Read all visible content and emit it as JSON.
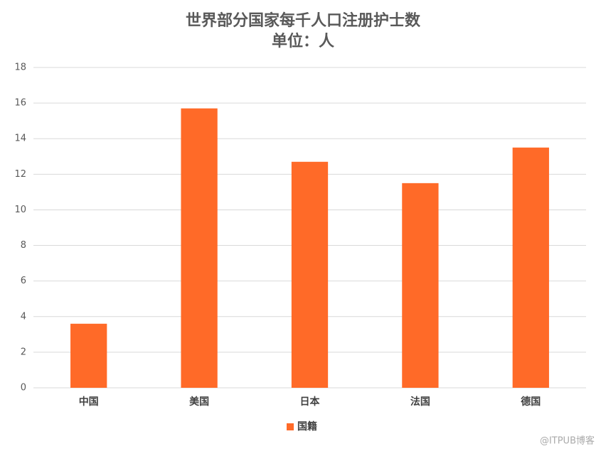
{
  "chart_data": {
    "type": "bar",
    "title": "世界部分国家每千人口注册护士数",
    "subtitle": "单位：人",
    "categories": [
      "中国",
      "美国",
      "日本",
      "法国",
      "德国"
    ],
    "series": [
      {
        "name": "国籍",
        "color": "#ff6a28",
        "values": [
          3.6,
          15.7,
          12.7,
          11.5,
          13.5
        ]
      }
    ],
    "ylim": [
      0,
      18
    ],
    "yticks": [
      0,
      2,
      4,
      6,
      8,
      10,
      12,
      14,
      16,
      18
    ],
    "grid": true,
    "legend": "bottom",
    "watermark": "@ITPUB博客"
  }
}
